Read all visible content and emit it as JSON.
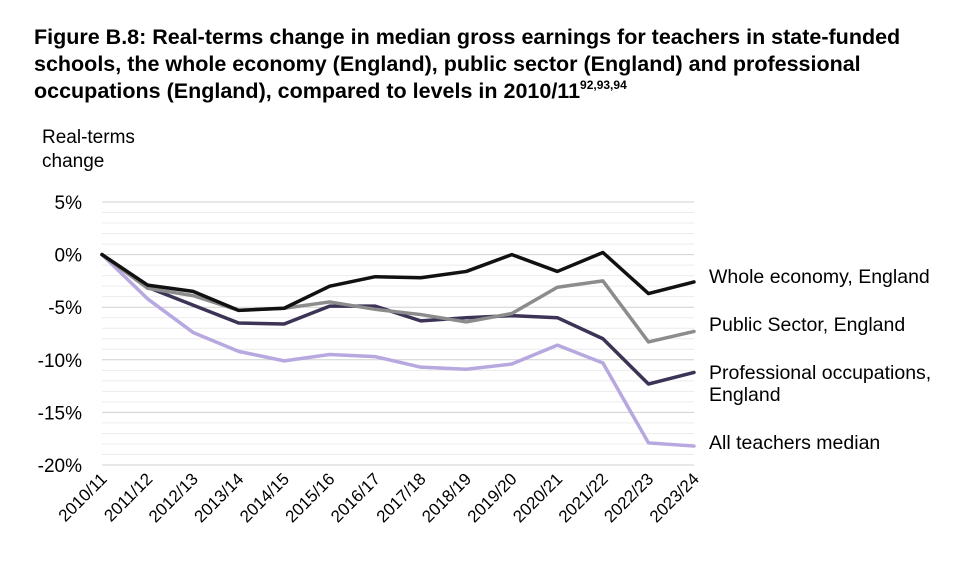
{
  "title": {
    "text": "Figure B.8: Real-terms change in median gross earnings for teachers in state-funded schools, the whole economy (England), public sector (England) and professional occupations (England), compared to levels in 2010/11",
    "superscript": "92,93,94"
  },
  "chart_data": {
    "type": "line",
    "ylabel": "Real-terms change",
    "xlabel": "",
    "ylim": [
      -20,
      5
    ],
    "yticks": [
      "5%",
      "0%",
      "-5%",
      "-10%",
      "-15%",
      "-20%"
    ],
    "grid": true,
    "legend_placement": "labels at right end of lines",
    "categories": [
      "2010/11",
      "2011/12",
      "2012/13",
      "2013/14",
      "2014/15",
      "2015/16",
      "2016/17",
      "2017/18",
      "2018/19",
      "2019/20",
      "2020/21",
      "2021/22",
      "2022/23",
      "2023/24"
    ],
    "series": [
      {
        "name": "Whole economy, England",
        "color": "#111111",
        "values": [
          0,
          -2.9,
          -3.5,
          -5.3,
          -5.1,
          -3.0,
          -2.1,
          -2.2,
          -1.6,
          0.0,
          -1.6,
          0.2,
          -3.7,
          -2.6
        ]
      },
      {
        "name": "Public Sector, England",
        "color": "#8c8c8c",
        "values": [
          0,
          -3.2,
          -3.9,
          -5.3,
          -5.1,
          -4.5,
          -5.2,
          -5.7,
          -6.4,
          -5.6,
          -3.1,
          -2.5,
          -8.3,
          -7.3
        ]
      },
      {
        "name": "Professional occupations, England",
        "color": "#3d3356",
        "values": [
          0,
          -3.1,
          -4.8,
          -6.5,
          -6.6,
          -4.9,
          -4.9,
          -6.3,
          -6.0,
          -5.8,
          -6.0,
          -8.0,
          -12.3,
          -11.2
        ]
      },
      {
        "name": "All teachers median",
        "color": "#b8a8e0",
        "values": [
          0,
          -4.2,
          -7.4,
          -9.2,
          -10.1,
          -9.5,
          -9.7,
          -10.7,
          -10.9,
          -10.4,
          -8.6,
          -10.3,
          -17.9,
          -18.2
        ]
      }
    ]
  }
}
